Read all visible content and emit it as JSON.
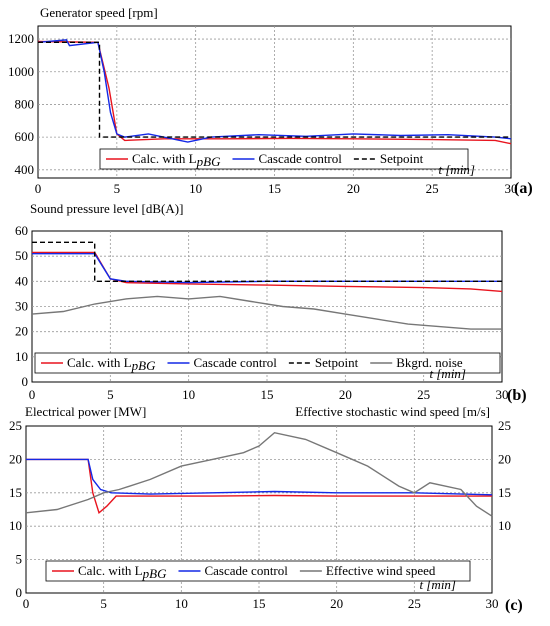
{
  "chart_data": [
    {
      "panel_label": "(a)",
      "type": "line",
      "title": "Generator speed [rpm]",
      "xlabel": "t [min]",
      "xlim": [
        0,
        30
      ],
      "ylim": [
        350,
        1280
      ],
      "xticks": [
        0,
        5,
        10,
        15,
        20,
        25,
        30
      ],
      "yticks": [
        400,
        600,
        800,
        1000,
        1200
      ],
      "grid": true,
      "legend_position": "bottom-center",
      "series": [
        {
          "name": "Calc. with L",
          "legend_suffix": "pBG",
          "color": "#e8141e",
          "dash": "",
          "x": [
            0,
            3.8,
            4.5,
            5.0,
            5.5,
            8,
            12,
            16,
            20,
            25,
            29,
            30
          ],
          "y": [
            1185,
            1180,
            900,
            620,
            580,
            590,
            590,
            592,
            590,
            585,
            580,
            560
          ]
        },
        {
          "name": "Cascade control",
          "color": "#1428e6",
          "dash": "",
          "x": [
            0,
            1.8,
            2.0,
            3.8,
            4.2,
            4.6,
            5.0,
            5.5,
            7,
            9.5,
            11,
            14,
            17,
            20,
            23,
            26,
            29,
            30
          ],
          "y": [
            1180,
            1195,
            1160,
            1180,
            1000,
            750,
            620,
            600,
            620,
            570,
            600,
            615,
            605,
            620,
            610,
            615,
            600,
            590
          ]
        },
        {
          "name": "Setpoint",
          "color": "#000000",
          "dash": "5,3",
          "x": [
            0,
            3.9,
            3.9,
            30
          ],
          "y": [
            1180,
            1180,
            600,
            600
          ]
        }
      ]
    },
    {
      "panel_label": "(b)",
      "type": "line",
      "title": "Sound pressure level [dB(A)]",
      "xlabel": "t [min]",
      "xlim": [
        0,
        30
      ],
      "ylim": [
        0,
        60
      ],
      "xticks": [
        0,
        5,
        10,
        15,
        20,
        25,
        30
      ],
      "yticks": [
        0,
        10,
        20,
        30,
        40,
        50,
        60
      ],
      "grid": true,
      "legend_position": "bottom-center",
      "series": [
        {
          "name": "Calc. with L",
          "legend_suffix": "pBG",
          "color": "#e8141e",
          "dash": "",
          "x": [
            0,
            4,
            5,
            6,
            10,
            15,
            20,
            25,
            28,
            30
          ],
          "y": [
            51.5,
            51.5,
            41,
            39.5,
            39,
            38.5,
            38,
            37.5,
            37,
            36
          ]
        },
        {
          "name": "Cascade control",
          "color": "#1428e6",
          "dash": "",
          "x": [
            0,
            4,
            5,
            6,
            10,
            15,
            20,
            25,
            30
          ],
          "y": [
            51,
            51,
            41,
            40,
            39.5,
            40,
            40,
            40,
            40
          ]
        },
        {
          "name": "Setpoint",
          "color": "#000000",
          "dash": "5,3",
          "x": [
            0,
            4,
            4,
            30
          ],
          "y": [
            55.5,
            55.5,
            40,
            40
          ]
        },
        {
          "name": "Bkgrd. noise",
          "color": "#777777",
          "dash": "",
          "x": [
            0,
            2,
            4,
            6,
            8,
            10,
            12,
            14,
            16,
            18,
            20,
            22,
            24,
            26,
            28,
            30
          ],
          "y": [
            27,
            28,
            31,
            33,
            34,
            33,
            34,
            32,
            30,
            29,
            27,
            25,
            23,
            22,
            21,
            21
          ]
        }
      ]
    },
    {
      "panel_label": "(c)",
      "type": "line",
      "title": "Electrical power [MW]",
      "title_right": "Effective stochastic wind speed [m/s]",
      "xlabel": "t [min]",
      "xlim": [
        0,
        30
      ],
      "ylim": [
        0,
        25
      ],
      "ylim_right": [
        0,
        25
      ],
      "xticks": [
        0,
        5,
        10,
        15,
        20,
        25,
        30
      ],
      "yticks": [
        0,
        5,
        10,
        15,
        20,
        25
      ],
      "yticks_right": [
        10,
        15,
        20,
        25
      ],
      "grid": true,
      "legend_position": "bottom-center",
      "series": [
        {
          "name": "Calc. with L",
          "legend_suffix": "pBG",
          "color": "#e8141e",
          "dash": "",
          "x": [
            0,
            4,
            4.3,
            4.7,
            5.2,
            5.8,
            8,
            12,
            16,
            20,
            25,
            30
          ],
          "y": [
            20,
            20,
            15,
            12,
            13,
            14.5,
            14.5,
            14.5,
            14.6,
            14.5,
            14.5,
            14.5
          ]
        },
        {
          "name": "Cascade control",
          "color": "#1428e6",
          "dash": "",
          "x": [
            0,
            4,
            4.3,
            4.8,
            5.5,
            8,
            12,
            16,
            20,
            25,
            30
          ],
          "y": [
            20,
            20,
            17,
            15.5,
            15,
            14.8,
            15,
            15.2,
            15,
            15,
            14.7
          ]
        },
        {
          "name": "Effective wind speed",
          "color": "#777777",
          "dash": "",
          "axis": "right",
          "x": [
            0,
            2,
            4,
            5,
            6,
            8,
            10,
            12,
            14,
            15,
            16,
            18,
            20,
            22,
            24,
            25,
            26,
            28,
            29,
            30
          ],
          "y": [
            12,
            12.5,
            14,
            15,
            15.5,
            17,
            19,
            20,
            21,
            22,
            24,
            23,
            21,
            19,
            16,
            15,
            16.5,
            15.5,
            13,
            11.5
          ]
        }
      ]
    }
  ]
}
